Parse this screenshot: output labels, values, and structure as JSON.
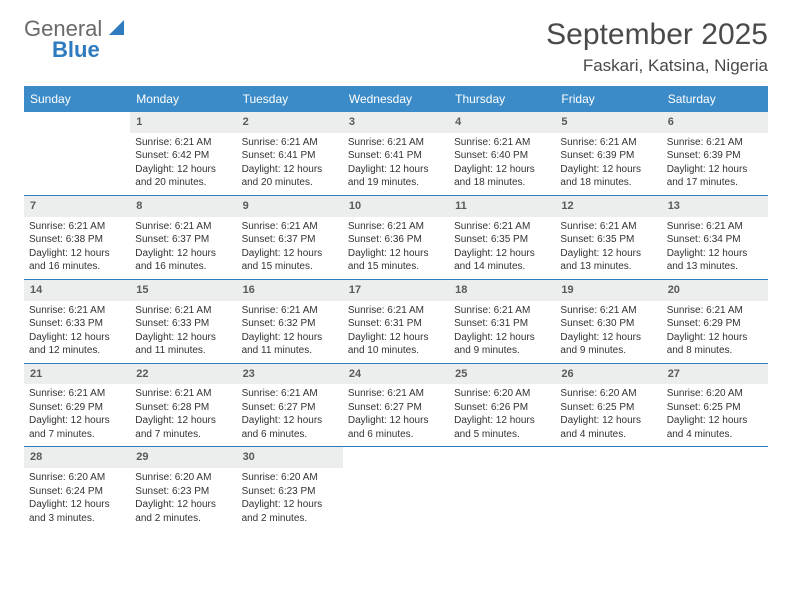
{
  "logo": {
    "general": "General",
    "blue": "Blue"
  },
  "title": "September 2025",
  "location": "Faskari, Katsina, Nigeria",
  "header_bg": "#3b8bc8",
  "daynum_bg": "#eceded",
  "row_border": "#2f7bbf",
  "day_headers": [
    "Sunday",
    "Monday",
    "Tuesday",
    "Wednesday",
    "Thursday",
    "Friday",
    "Saturday"
  ],
  "weeks": [
    [
      {
        "n": "",
        "sr": "",
        "ss": "",
        "dl": "",
        "empty": true
      },
      {
        "n": "1",
        "sr": "Sunrise: 6:21 AM",
        "ss": "Sunset: 6:42 PM",
        "dl": "Daylight: 12 hours and 20 minutes."
      },
      {
        "n": "2",
        "sr": "Sunrise: 6:21 AM",
        "ss": "Sunset: 6:41 PM",
        "dl": "Daylight: 12 hours and 20 minutes."
      },
      {
        "n": "3",
        "sr": "Sunrise: 6:21 AM",
        "ss": "Sunset: 6:41 PM",
        "dl": "Daylight: 12 hours and 19 minutes."
      },
      {
        "n": "4",
        "sr": "Sunrise: 6:21 AM",
        "ss": "Sunset: 6:40 PM",
        "dl": "Daylight: 12 hours and 18 minutes."
      },
      {
        "n": "5",
        "sr": "Sunrise: 6:21 AM",
        "ss": "Sunset: 6:39 PM",
        "dl": "Daylight: 12 hours and 18 minutes."
      },
      {
        "n": "6",
        "sr": "Sunrise: 6:21 AM",
        "ss": "Sunset: 6:39 PM",
        "dl": "Daylight: 12 hours and 17 minutes."
      }
    ],
    [
      {
        "n": "7",
        "sr": "Sunrise: 6:21 AM",
        "ss": "Sunset: 6:38 PM",
        "dl": "Daylight: 12 hours and 16 minutes."
      },
      {
        "n": "8",
        "sr": "Sunrise: 6:21 AM",
        "ss": "Sunset: 6:37 PM",
        "dl": "Daylight: 12 hours and 16 minutes."
      },
      {
        "n": "9",
        "sr": "Sunrise: 6:21 AM",
        "ss": "Sunset: 6:37 PM",
        "dl": "Daylight: 12 hours and 15 minutes."
      },
      {
        "n": "10",
        "sr": "Sunrise: 6:21 AM",
        "ss": "Sunset: 6:36 PM",
        "dl": "Daylight: 12 hours and 15 minutes."
      },
      {
        "n": "11",
        "sr": "Sunrise: 6:21 AM",
        "ss": "Sunset: 6:35 PM",
        "dl": "Daylight: 12 hours and 14 minutes."
      },
      {
        "n": "12",
        "sr": "Sunrise: 6:21 AM",
        "ss": "Sunset: 6:35 PM",
        "dl": "Daylight: 12 hours and 13 minutes."
      },
      {
        "n": "13",
        "sr": "Sunrise: 6:21 AM",
        "ss": "Sunset: 6:34 PM",
        "dl": "Daylight: 12 hours and 13 minutes."
      }
    ],
    [
      {
        "n": "14",
        "sr": "Sunrise: 6:21 AM",
        "ss": "Sunset: 6:33 PM",
        "dl": "Daylight: 12 hours and 12 minutes."
      },
      {
        "n": "15",
        "sr": "Sunrise: 6:21 AM",
        "ss": "Sunset: 6:33 PM",
        "dl": "Daylight: 12 hours and 11 minutes."
      },
      {
        "n": "16",
        "sr": "Sunrise: 6:21 AM",
        "ss": "Sunset: 6:32 PM",
        "dl": "Daylight: 12 hours and 11 minutes."
      },
      {
        "n": "17",
        "sr": "Sunrise: 6:21 AM",
        "ss": "Sunset: 6:31 PM",
        "dl": "Daylight: 12 hours and 10 minutes."
      },
      {
        "n": "18",
        "sr": "Sunrise: 6:21 AM",
        "ss": "Sunset: 6:31 PM",
        "dl": "Daylight: 12 hours and 9 minutes."
      },
      {
        "n": "19",
        "sr": "Sunrise: 6:21 AM",
        "ss": "Sunset: 6:30 PM",
        "dl": "Daylight: 12 hours and 9 minutes."
      },
      {
        "n": "20",
        "sr": "Sunrise: 6:21 AM",
        "ss": "Sunset: 6:29 PM",
        "dl": "Daylight: 12 hours and 8 minutes."
      }
    ],
    [
      {
        "n": "21",
        "sr": "Sunrise: 6:21 AM",
        "ss": "Sunset: 6:29 PM",
        "dl": "Daylight: 12 hours and 7 minutes."
      },
      {
        "n": "22",
        "sr": "Sunrise: 6:21 AM",
        "ss": "Sunset: 6:28 PM",
        "dl": "Daylight: 12 hours and 7 minutes."
      },
      {
        "n": "23",
        "sr": "Sunrise: 6:21 AM",
        "ss": "Sunset: 6:27 PM",
        "dl": "Daylight: 12 hours and 6 minutes."
      },
      {
        "n": "24",
        "sr": "Sunrise: 6:21 AM",
        "ss": "Sunset: 6:27 PM",
        "dl": "Daylight: 12 hours and 6 minutes."
      },
      {
        "n": "25",
        "sr": "Sunrise: 6:20 AM",
        "ss": "Sunset: 6:26 PM",
        "dl": "Daylight: 12 hours and 5 minutes."
      },
      {
        "n": "26",
        "sr": "Sunrise: 6:20 AM",
        "ss": "Sunset: 6:25 PM",
        "dl": "Daylight: 12 hours and 4 minutes."
      },
      {
        "n": "27",
        "sr": "Sunrise: 6:20 AM",
        "ss": "Sunset: 6:25 PM",
        "dl": "Daylight: 12 hours and 4 minutes."
      }
    ],
    [
      {
        "n": "28",
        "sr": "Sunrise: 6:20 AM",
        "ss": "Sunset: 6:24 PM",
        "dl": "Daylight: 12 hours and 3 minutes."
      },
      {
        "n": "29",
        "sr": "Sunrise: 6:20 AM",
        "ss": "Sunset: 6:23 PM",
        "dl": "Daylight: 12 hours and 2 minutes."
      },
      {
        "n": "30",
        "sr": "Sunrise: 6:20 AM",
        "ss": "Sunset: 6:23 PM",
        "dl": "Daylight: 12 hours and 2 minutes."
      },
      {
        "n": "",
        "sr": "",
        "ss": "",
        "dl": "",
        "empty": true
      },
      {
        "n": "",
        "sr": "",
        "ss": "",
        "dl": "",
        "empty": true
      },
      {
        "n": "",
        "sr": "",
        "ss": "",
        "dl": "",
        "empty": true
      },
      {
        "n": "",
        "sr": "",
        "ss": "",
        "dl": "",
        "empty": true
      }
    ]
  ]
}
